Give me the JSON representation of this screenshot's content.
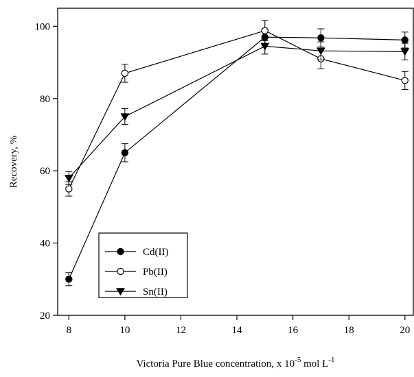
{
  "chart_data": {
    "type": "line",
    "title": "",
    "xlabel": "Victoria Pure Blue concentration, x 10",
    "xlabel_exp1": "-5",
    "xlabel_mid": " mol L",
    "xlabel_exp2": "-1",
    "ylabel": "Recovery, %",
    "xlim": [
      7.6,
      20.3
    ],
    "ylim": [
      20,
      105
    ],
    "xticks": [
      8,
      10,
      12,
      14,
      16,
      18,
      20
    ],
    "yticks": [
      20,
      40,
      60,
      80,
      100
    ],
    "grid": false,
    "legend_position": "bottom-left",
    "x": [
      8,
      10,
      15,
      17,
      20
    ],
    "series": [
      {
        "name": "Cd(II)",
        "marker": "filled-circle",
        "values": [
          30,
          65,
          97,
          96.8,
          96.2
        ],
        "errors": [
          1.8,
          2.5,
          2.2,
          2.5,
          2.2
        ]
      },
      {
        "name": "Pb(II)",
        "marker": "open-circle",
        "values": [
          55,
          87,
          98.8,
          91,
          85
        ],
        "errors": [
          2,
          2.5,
          2.8,
          2.8,
          2.5
        ]
      },
      {
        "name": "Sn(II)",
        "marker": "filled-triangle-down",
        "values": [
          58,
          75,
          94.5,
          93.2,
          93
        ],
        "errors": [
          1.8,
          2.2,
          2.2,
          2.5,
          2.3
        ]
      }
    ]
  }
}
